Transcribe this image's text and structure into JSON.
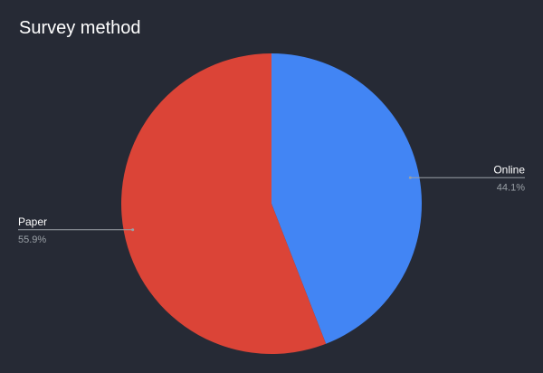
{
  "chart_data": {
    "type": "pie",
    "title": "Survey method",
    "slices": [
      {
        "label": "Online",
        "value": 44.1,
        "value_label": "44.1%",
        "color": "#4285f4"
      },
      {
        "label": "Paper",
        "value": 55.9,
        "value_label": "55.9%",
        "color": "#db4437"
      }
    ],
    "start_angle_deg": 0,
    "direction": "clockwise",
    "legend": "none"
  },
  "theme": {
    "background": "#262a35",
    "title_color": "#ffffff",
    "label_color": "#ffffff",
    "percent_color": "#9aa0a6",
    "leader_line_color": "#9aa0a6"
  }
}
